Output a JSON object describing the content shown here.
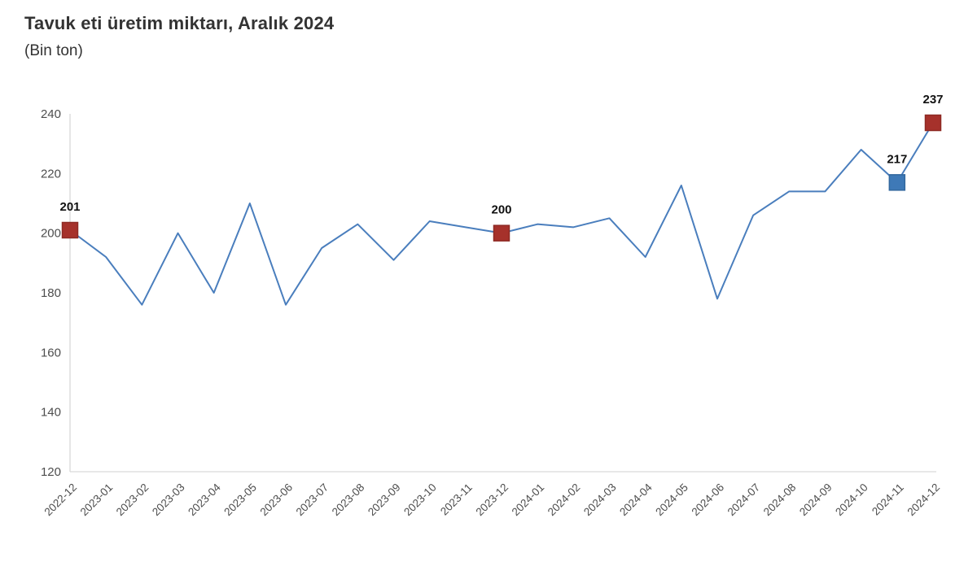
{
  "chart_data": {
    "type": "line",
    "title": "Tavuk eti üretim miktarı, Aralık 2024",
    "subtitle": "(Bin ton)",
    "xlabel": "",
    "ylabel": "",
    "x": [
      "2022-12",
      "2023-01",
      "2023-02",
      "2023-03",
      "2023-04",
      "2023-05",
      "2023-06",
      "2023-07",
      "2023-08",
      "2023-09",
      "2023-10",
      "2023-11",
      "2023-12",
      "2024-01",
      "2024-02",
      "2024-03",
      "2024-04",
      "2024-05",
      "2024-06",
      "2024-07",
      "2024-08",
      "2024-09",
      "2024-10",
      "2024-11",
      "2024-12"
    ],
    "series": [
      {
        "name": "Tavuk eti üretim miktarı (Bin ton)",
        "values": [
          201,
          192,
          176,
          200,
          180,
          210,
          176,
          195,
          203,
          191,
          204,
          202,
          200,
          203,
          202,
          205,
          192,
          216,
          178,
          206,
          214,
          214,
          228,
          217,
          237
        ]
      }
    ],
    "ylim": [
      120,
      240
    ],
    "yticks": [
      240,
      220,
      200,
      180,
      160,
      140,
      120
    ],
    "grid": false,
    "legend_position": "none",
    "annotated_points": [
      {
        "x": "2022-12",
        "index": 0,
        "value": 201,
        "label": "201",
        "marker": "square",
        "fill": "#A6312B",
        "border": "#8E2A24"
      },
      {
        "x": "2023-12",
        "index": 12,
        "value": 200,
        "label": "200",
        "marker": "square",
        "fill": "#A6312B",
        "border": "#8E2A24"
      },
      {
        "x": "2024-11",
        "index": 23,
        "value": 217,
        "label": "217",
        "marker": "square",
        "fill": "#3E79B7",
        "border": "#33689F"
      },
      {
        "x": "2024-12",
        "index": 24,
        "value": 237,
        "label": "237",
        "marker": "square",
        "fill": "#A6312B",
        "border": "#8E2A24"
      }
    ],
    "colors": {
      "line": "#4A7EBD",
      "axis": "#D9D9D9",
      "tick_text": "#4D4D4D",
      "point_label_text": "#111111",
      "background": "#FFFFFF"
    }
  }
}
